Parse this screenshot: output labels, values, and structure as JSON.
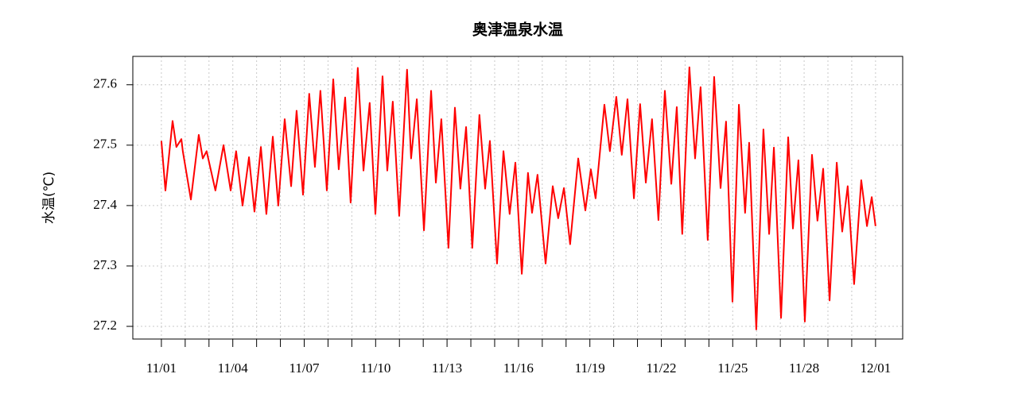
{
  "chart_data": {
    "type": "line",
    "title": "奥津温泉水温",
    "ylabel": "水温(℃)",
    "series": [
      {
        "name": "水温",
        "color": "#ff0000",
        "x": [
          0,
          0.17,
          0.47,
          0.63,
          0.84,
          0.9,
          1.24,
          1.57,
          1.74,
          1.9,
          2.27,
          2.61,
          2.91,
          3.14,
          3.41,
          3.68,
          3.91,
          4.18,
          4.41,
          4.68,
          4.91,
          5.18,
          5.45,
          5.68,
          5.95,
          6.21,
          6.45,
          6.68,
          6.95,
          7.22,
          7.45,
          7.72,
          7.95,
          8.25,
          8.49,
          8.75,
          8.99,
          9.29,
          9.49,
          9.72,
          9.99,
          10.32,
          10.49,
          10.73,
          11.03,
          11.33,
          11.53,
          11.76,
          12.06,
          12.33,
          12.56,
          12.8,
          13.06,
          13.36,
          13.6,
          13.8,
          14.1,
          14.37,
          14.63,
          14.87,
          15.14,
          15.4,
          15.57,
          15.8,
          16.14,
          16.44,
          16.67,
          16.91,
          17.17,
          17.51,
          17.81,
          18.04,
          18.24,
          18.61,
          18.84,
          19.11,
          19.34,
          19.58,
          19.85,
          20.11,
          20.35,
          20.61,
          20.88,
          21.15,
          21.42,
          21.65,
          21.88,
          22.18,
          22.42,
          22.65,
          22.95,
          23.22,
          23.49,
          23.72,
          23.99,
          24.26,
          24.52,
          24.69,
          24.99,
          25.29,
          25.53,
          25.73,
          26.03,
          26.33,
          26.53,
          26.76,
          27.03,
          27.33,
          27.56,
          27.8,
          28.07,
          28.37,
          28.6,
          28.83,
          29.1,
          29.4,
          29.64,
          29.84,
          30
        ],
        "values": [
          27.507,
          27.425,
          27.54,
          27.497,
          27.51,
          27.49,
          27.41,
          27.517,
          27.478,
          27.49,
          27.425,
          27.5,
          27.425,
          27.49,
          27.4,
          27.48,
          27.39,
          27.497,
          27.386,
          27.514,
          27.4,
          27.543,
          27.432,
          27.557,
          27.418,
          27.585,
          27.464,
          27.59,
          27.425,
          27.609,
          27.46,
          27.579,
          27.405,
          27.628,
          27.458,
          27.57,
          27.386,
          27.614,
          27.458,
          27.572,
          27.383,
          27.625,
          27.478,
          27.576,
          27.359,
          27.59,
          27.438,
          27.543,
          27.33,
          27.562,
          27.428,
          27.53,
          27.33,
          27.55,
          27.428,
          27.507,
          27.304,
          27.49,
          27.386,
          27.471,
          27.287,
          27.454,
          27.388,
          27.451,
          27.304,
          27.432,
          27.379,
          27.429,
          27.336,
          27.478,
          27.392,
          27.46,
          27.412,
          27.567,
          27.49,
          27.58,
          27.484,
          27.576,
          27.412,
          27.568,
          27.438,
          27.543,
          27.376,
          27.59,
          27.436,
          27.563,
          27.353,
          27.629,
          27.478,
          27.596,
          27.343,
          27.613,
          27.429,
          27.539,
          27.241,
          27.567,
          27.388,
          27.504,
          27.195,
          27.526,
          27.353,
          27.496,
          27.214,
          27.513,
          27.362,
          27.475,
          27.208,
          27.484,
          27.375,
          27.461,
          27.243,
          27.471,
          27.357,
          27.432,
          27.27,
          27.442,
          27.366,
          27.414,
          27.366
        ]
      }
    ],
    "xlim": [
      -1.2,
      31.14
    ],
    "xticks": [
      {
        "value": 0,
        "label": "11/01"
      },
      {
        "value": 3,
        "label": "11/04"
      },
      {
        "value": 6,
        "label": "11/07"
      },
      {
        "value": 9,
        "label": "11/10"
      },
      {
        "value": 12,
        "label": "11/13"
      },
      {
        "value": 15,
        "label": "11/16"
      },
      {
        "value": 18,
        "label": "11/19"
      },
      {
        "value": 21,
        "label": "11/22"
      },
      {
        "value": 24,
        "label": "11/25"
      },
      {
        "value": 27,
        "label": "11/28"
      },
      {
        "value": 30,
        "label": "12/01"
      }
    ],
    "xminorticks": [
      1,
      2,
      4,
      5,
      7,
      8,
      10,
      11,
      13,
      14,
      16,
      17,
      19,
      20,
      22,
      23,
      25,
      26,
      28,
      29
    ],
    "ylim": [
      27.179,
      27.647
    ],
    "yticks": [
      27.2,
      27.3,
      27.4,
      27.5,
      27.6
    ],
    "grid": true
  }
}
